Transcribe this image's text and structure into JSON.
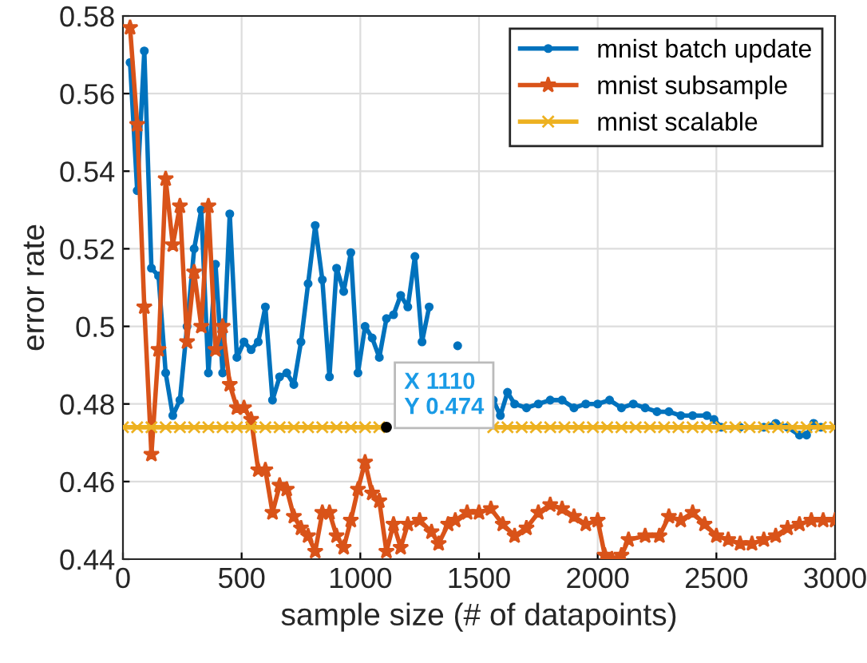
{
  "chart_data": {
    "type": "line",
    "xlabel": "sample size (# of datapoints)",
    "ylabel": "error rate",
    "xlim": [
      0,
      3000
    ],
    "ylim": [
      0.44,
      0.58
    ],
    "xticks": [
      0,
      500,
      1000,
      1500,
      2000,
      2500,
      3000
    ],
    "yticks": [
      0.44,
      0.46,
      0.48,
      0.5,
      0.52,
      0.54,
      0.56,
      0.58
    ],
    "grid": true,
    "legend": "top right",
    "line_style": "solid",
    "annotations": [
      {
        "text": "X 1110\nY 0.474",
        "x": 1110,
        "y": 0.474
      }
    ],
    "series": [
      {
        "name": "mnist batch update",
        "color": "#0072bd",
        "marker": "circle",
        "x": [
          30,
          60,
          90,
          120,
          150,
          180,
          210,
          240,
          270,
          300,
          330,
          360,
          390,
          420,
          450,
          480,
          510,
          540,
          570,
          600,
          630,
          660,
          690,
          720,
          750,
          780,
          810,
          840,
          870,
          900,
          930,
          960,
          990,
          1020,
          1050,
          1080,
          1110,
          1140,
          1170,
          1200,
          1230,
          1260,
          1290,
          1320,
          1410,
          1440,
          1500,
          1530,
          1560,
          1590,
          1620,
          1650,
          1700,
          1750,
          1800,
          1850,
          1900,
          1950,
          2000,
          2050,
          2100,
          2150,
          2200,
          2250,
          2300,
          2350,
          2400,
          2460,
          2490,
          2520,
          2600,
          2700,
          2750,
          2800,
          2850,
          2880,
          2910,
          2940
        ],
        "values": [
          0.568,
          0.535,
          0.571,
          0.515,
          0.513,
          0.488,
          0.477,
          0.481,
          0.5,
          0.52,
          0.53,
          0.488,
          0.516,
          0.488,
          0.529,
          0.492,
          0.496,
          0.494,
          0.496,
          0.505,
          0.481,
          0.487,
          0.488,
          0.485,
          0.496,
          0.511,
          0.526,
          0.512,
          0.487,
          0.515,
          0.509,
          0.519,
          0.488,
          0.5,
          0.497,
          0.492,
          0.502,
          0.503,
          0.508,
          0.505,
          0.518,
          0.496,
          0.505,
          null,
          0.495,
          null,
          null,
          null,
          0.481,
          0.477,
          0.483,
          0.48,
          0.479,
          0.48,
          0.481,
          0.481,
          0.479,
          0.48,
          0.48,
          0.481,
          0.479,
          0.48,
          0.479,
          0.478,
          0.478,
          0.477,
          0.477,
          0.477,
          0.476,
          0.474,
          0.474,
          0.474,
          0.475,
          0.474,
          0.472,
          0.472,
          0.475,
          0.474
        ]
      },
      {
        "name": "mnist subsample",
        "color": "#d95319",
        "marker": "star",
        "x": [
          30,
          60,
          90,
          120,
          150,
          180,
          210,
          240,
          270,
          300,
          330,
          360,
          390,
          420,
          450,
          480,
          510,
          540,
          570,
          600,
          630,
          660,
          690,
          720,
          750,
          780,
          810,
          840,
          870,
          900,
          930,
          960,
          990,
          1020,
          1050,
          1080,
          1110,
          1140,
          1170,
          1200,
          1250,
          1300,
          1330,
          1370,
          1400,
          1450,
          1500,
          1550,
          1600,
          1650,
          1700,
          1750,
          1800,
          1850,
          1900,
          1950,
          2000,
          2030,
          2060,
          2100,
          2130,
          2200,
          2260,
          2300,
          2350,
          2400,
          2450,
          2500,
          2550,
          2600,
          2650,
          2700,
          2750,
          2800,
          2850,
          2900,
          2950,
          3000
        ],
        "values": [
          0.577,
          0.552,
          0.505,
          0.467,
          0.494,
          0.538,
          0.521,
          0.531,
          0.496,
          0.514,
          0.5,
          0.531,
          0.494,
          0.5,
          0.485,
          0.479,
          0.479,
          0.476,
          0.463,
          0.463,
          0.452,
          0.459,
          0.458,
          0.451,
          0.448,
          0.446,
          0.442,
          0.452,
          0.452,
          0.446,
          0.443,
          0.45,
          0.458,
          0.465,
          0.457,
          0.455,
          0.442,
          0.449,
          0.443,
          0.449,
          0.45,
          0.447,
          0.444,
          0.449,
          0.45,
          0.452,
          0.452,
          0.453,
          0.449,
          0.446,
          0.448,
          0.452,
          0.454,
          0.453,
          0.451,
          0.449,
          0.45,
          0.441,
          0.44,
          0.441,
          0.445,
          0.446,
          0.446,
          0.451,
          0.45,
          0.452,
          0.449,
          0.446,
          0.445,
          0.444,
          0.444,
          0.445,
          0.446,
          0.448,
          0.449,
          0.45,
          0.45,
          0.45
        ]
      },
      {
        "name": "mnist scalable",
        "color": "#edb120",
        "marker": "cross",
        "x": [
          0,
          60,
          120,
          180,
          240,
          300,
          360,
          420,
          480,
          540,
          600,
          660,
          720,
          780,
          840,
          900,
          960,
          1020,
          1080,
          1140,
          1200,
          1260,
          1320,
          1380,
          1440,
          1500,
          1560,
          1620,
          1680,
          1740,
          1800,
          1860,
          1920,
          1980,
          2040,
          2100,
          2160,
          2220,
          2280,
          2340,
          2400,
          2460,
          2520,
          2580,
          2640,
          2700,
          2760,
          2820,
          2880,
          2940,
          3000
        ],
        "values": [
          0.474,
          0.474,
          0.474,
          0.474,
          0.474,
          0.474,
          0.474,
          0.474,
          0.474,
          0.474,
          0.474,
          0.474,
          0.474,
          0.474,
          0.474,
          0.474,
          0.474,
          0.474,
          0.474,
          null,
          null,
          null,
          null,
          null,
          null,
          null,
          0.474,
          0.474,
          0.474,
          0.474,
          0.474,
          0.474,
          0.474,
          0.474,
          0.474,
          0.474,
          0.474,
          0.474,
          0.474,
          0.474,
          0.474,
          0.474,
          0.474,
          0.474,
          0.474,
          0.474,
          0.474,
          0.474,
          0.474,
          0.474,
          0.474
        ]
      }
    ]
  }
}
